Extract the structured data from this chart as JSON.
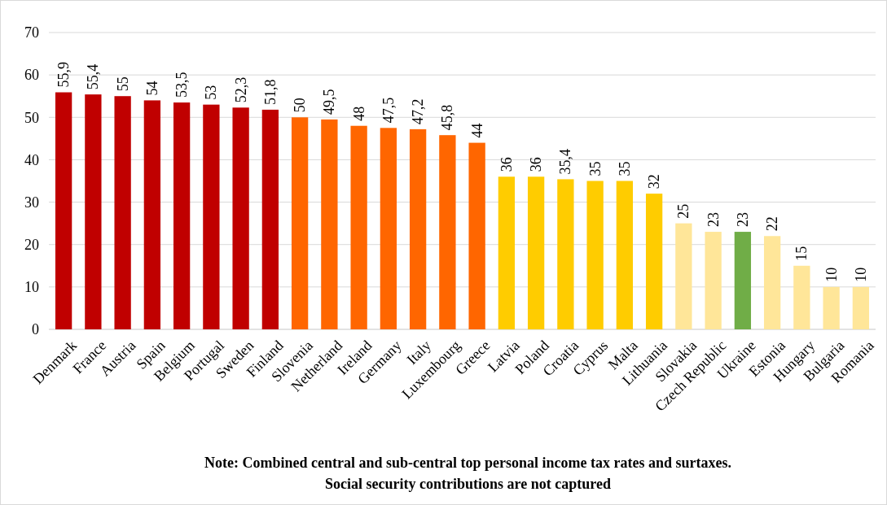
{
  "chart_data": {
    "type": "bar",
    "categories": [
      "Denmark",
      "France",
      "Austria",
      "Spain",
      "Belgium",
      "Portugal",
      "Sweden",
      "Finland",
      "Slovenia",
      "Netherland",
      "Ireland",
      "Germany",
      "Italy",
      "Luxembourg",
      "Greece",
      "Latvia",
      "Poland",
      "Croatia",
      "Cyprus",
      "Malta",
      "Lithuania",
      "Slovakia",
      "Czech Republic",
      "Ukraine",
      "Estonia",
      "Hungary",
      "Bulgaria",
      "Romania"
    ],
    "values": [
      55.9,
      55.4,
      55,
      54,
      53.5,
      53,
      52.3,
      51.8,
      50,
      49.5,
      48,
      47.5,
      47.2,
      45.8,
      44,
      36,
      36,
      35.4,
      35,
      35,
      32,
      25,
      23,
      23,
      22,
      15,
      10,
      10
    ],
    "colors": [
      "#c00000",
      "#c00000",
      "#c00000",
      "#c00000",
      "#c00000",
      "#c00000",
      "#c00000",
      "#c00000",
      "#ff6600",
      "#ff6600",
      "#ff6600",
      "#ff6600",
      "#ff6600",
      "#ff6600",
      "#ff6600",
      "#ffcc00",
      "#ffcc00",
      "#ffcc00",
      "#ffcc00",
      "#ffcc00",
      "#ffcc00",
      "#ffe699",
      "#ffe699",
      "#70ad47",
      "#ffe699",
      "#ffe699",
      "#ffe699",
      "#ffe699"
    ],
    "value_labels": [
      "55,9",
      "55,4",
      "55",
      "54",
      "53,5",
      "53",
      "52,3",
      "51,8",
      "50",
      "49,5",
      "48",
      "47,5",
      "47,2",
      "45,8",
      "44",
      "36",
      "36",
      "35,4",
      "35",
      "35",
      "32",
      "25",
      "23",
      "23",
      "22",
      "15",
      "10",
      "10"
    ],
    "ylim": [
      0,
      70
    ],
    "yticks": [
      0,
      10,
      20,
      30,
      40,
      50,
      60,
      70
    ],
    "grid": "y",
    "annotations": [
      "Note:  Combined central and sub-central top personal income tax rates and surtaxes.",
      "Social security contributions are not captured"
    ]
  }
}
